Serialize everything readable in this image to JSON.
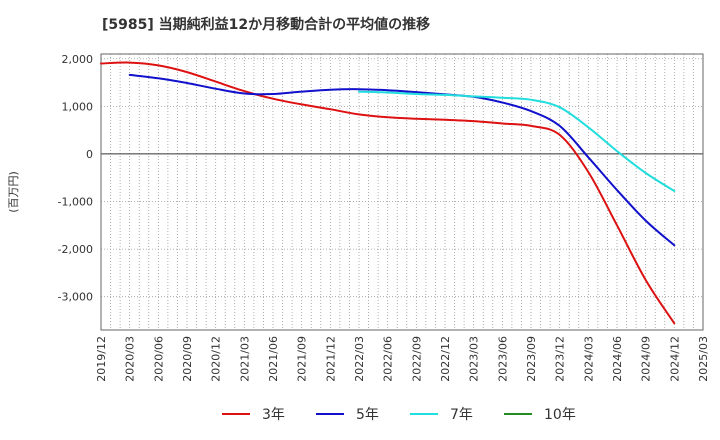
{
  "chart_data": {
    "type": "line",
    "title": "[5985]  当期純利益12か月移動合計の平均値の推移",
    "ylabel": "(百万円)",
    "xlabel": "",
    "ylim": [
      -3700,
      2100
    ],
    "yticks": [
      2000,
      1000,
      0,
      -1000,
      -2000,
      -3000
    ],
    "ytick_labels": [
      "2,000",
      "1,000",
      "0",
      "-1,000",
      "-2,000",
      "-3,000"
    ],
    "xlim": [
      "2019-12",
      "2025-03"
    ],
    "xtick_labels": [
      "2019/12",
      "2020/03",
      "2020/06",
      "2020/09",
      "2020/12",
      "2021/03",
      "2021/06",
      "2021/09",
      "2021/12",
      "2022/03",
      "2022/06",
      "2022/09",
      "2022/12",
      "2023/03",
      "2023/06",
      "2023/09",
      "2023/12",
      "2024/03",
      "2024/06",
      "2024/09",
      "2024/12",
      "2025/03"
    ],
    "grid": true,
    "legend_position": "bottom",
    "series": [
      {
        "name": "3年",
        "color": "#dd1111",
        "points": [
          [
            "2019-12",
            1900
          ],
          [
            "2020-03",
            1920
          ],
          [
            "2020-06",
            1860
          ],
          [
            "2020-09",
            1720
          ],
          [
            "2020-12",
            1520
          ],
          [
            "2021-03",
            1320
          ],
          [
            "2021-06",
            1160
          ],
          [
            "2021-09",
            1040
          ],
          [
            "2021-12",
            940
          ],
          [
            "2022-03",
            830
          ],
          [
            "2022-06",
            770
          ],
          [
            "2022-09",
            740
          ],
          [
            "2022-12",
            720
          ],
          [
            "2023-03",
            690
          ],
          [
            "2023-06",
            640
          ],
          [
            "2023-09",
            590
          ],
          [
            "2023-12",
            400
          ],
          [
            "2024-03",
            -380
          ],
          [
            "2024-06",
            -1500
          ],
          [
            "2024-09",
            -2650
          ],
          [
            "2024-12",
            -3560
          ]
        ]
      },
      {
        "name": "5年",
        "color": "#1111cc",
        "points": [
          [
            "2020-03",
            1660
          ],
          [
            "2020-06",
            1590
          ],
          [
            "2020-09",
            1490
          ],
          [
            "2020-12",
            1370
          ],
          [
            "2021-03",
            1270
          ],
          [
            "2021-06",
            1260
          ],
          [
            "2021-09",
            1310
          ],
          [
            "2021-12",
            1350
          ],
          [
            "2022-03",
            1360
          ],
          [
            "2022-06",
            1340
          ],
          [
            "2022-09",
            1300
          ],
          [
            "2022-12",
            1250
          ],
          [
            "2023-03",
            1200
          ],
          [
            "2023-06",
            1080
          ],
          [
            "2023-09",
            900
          ],
          [
            "2023-12",
            590
          ],
          [
            "2024-03",
            -70
          ],
          [
            "2024-06",
            -760
          ],
          [
            "2024-09",
            -1400
          ],
          [
            "2024-12",
            -1920
          ]
        ]
      },
      {
        "name": "7年",
        "color": "#22dddd",
        "points": [
          [
            "2022-03",
            1310
          ],
          [
            "2022-06",
            1290
          ],
          [
            "2022-09",
            1260
          ],
          [
            "2022-12",
            1240
          ],
          [
            "2023-03",
            1210
          ],
          [
            "2023-06",
            1180
          ],
          [
            "2023-09",
            1140
          ],
          [
            "2023-12",
            980
          ],
          [
            "2024-03",
            560
          ],
          [
            "2024-06",
            60
          ],
          [
            "2024-09",
            -400
          ],
          [
            "2024-12",
            -780
          ]
        ]
      },
      {
        "name": "10年",
        "color": "#228b22",
        "points": []
      }
    ]
  }
}
